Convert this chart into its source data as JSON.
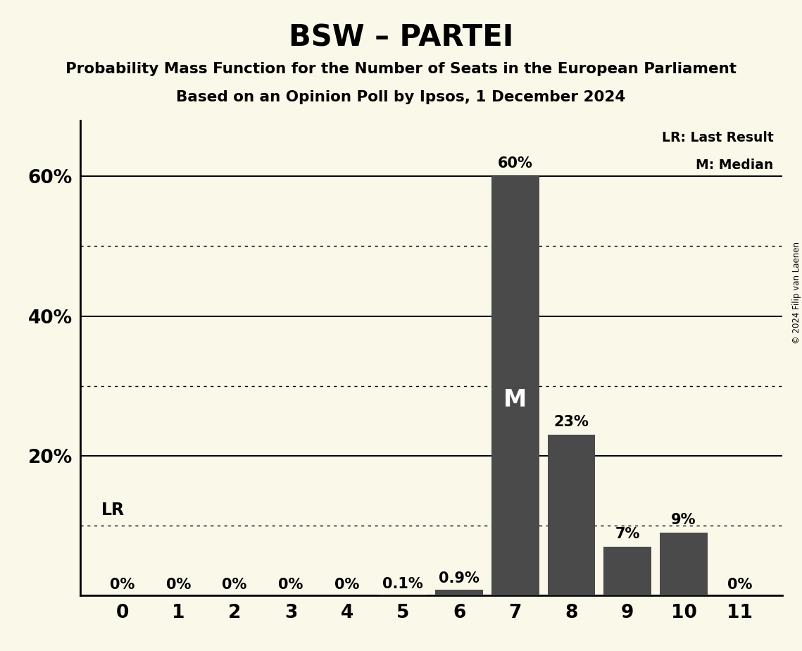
{
  "title": "BSW – PARTEI",
  "subtitle1": "Probability Mass Function for the Number of Seats in the European Parliament",
  "subtitle2": "Based on an Opinion Poll by Ipsos, 1 December 2024",
  "copyright": "© 2024 Filip van Laenen",
  "seats": [
    0,
    1,
    2,
    3,
    4,
    5,
    6,
    7,
    8,
    9,
    10,
    11
  ],
  "probabilities": [
    0.0,
    0.0,
    0.0,
    0.0,
    0.0,
    0.1,
    0.9,
    60.0,
    23.0,
    7.0,
    9.0,
    0.0
  ],
  "labels": [
    "0%",
    "0%",
    "0%",
    "0%",
    "0%",
    "0.1%",
    "0.9%",
    "60%",
    "23%",
    "7%",
    "9%",
    "0%"
  ],
  "bar_color": "#4a4a4a",
  "background_color": "#faf8e8",
  "median": 7,
  "last_result_seat": 0,
  "ylim": [
    0,
    68
  ],
  "solid_grid": [
    20,
    40,
    60
  ],
  "dotted_grid": [
    10,
    30,
    50
  ],
  "legend_lr": "LR: Last Result",
  "legend_m": "M: Median",
  "ytick_vals": [
    20,
    40,
    60
  ],
  "ytick_labels": [
    "20%",
    "40%",
    "60%"
  ]
}
